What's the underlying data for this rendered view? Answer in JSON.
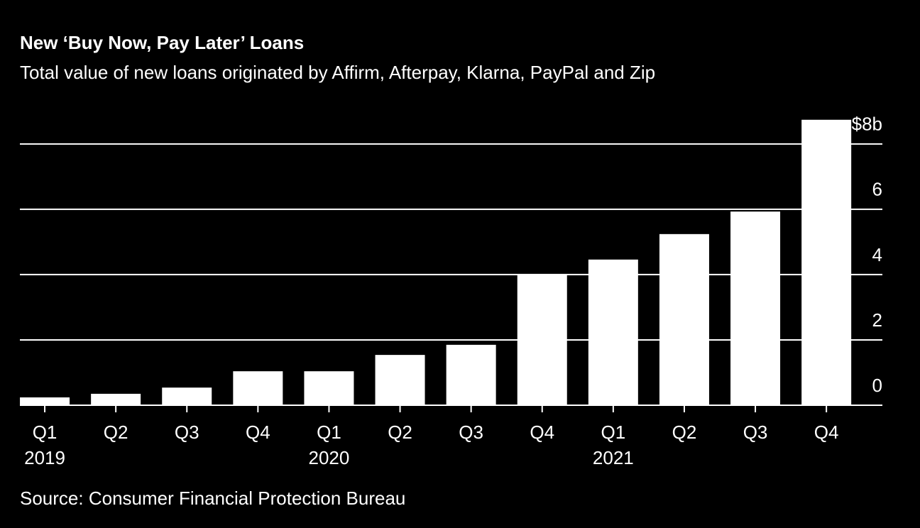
{
  "chart_data": {
    "type": "bar",
    "title": "New ‘Buy Now, Pay Later’ Loans",
    "subtitle": "Total value of new loans originated by Affirm, Afterpay, Klarna, PayPal and Zip",
    "source": "Source: Consumer Financial Protection Bureau",
    "categories": [
      "Q1",
      "Q2",
      "Q3",
      "Q4",
      "Q1",
      "Q2",
      "Q3",
      "Q4",
      "Q1",
      "Q2",
      "Q3",
      "Q4"
    ],
    "years": [
      "2019",
      null,
      null,
      null,
      "2020",
      null,
      null,
      null,
      "2021",
      null,
      null,
      null
    ],
    "values": [
      0.24,
      0.35,
      0.54,
      1.04,
      1.04,
      1.54,
      1.85,
      4.02,
      4.46,
      5.24,
      5.93,
      8.74
    ],
    "color": "#ffffff",
    "ylim": [
      0,
      8.8
    ],
    "yticks": [
      0,
      2,
      4,
      6,
      {
        "value": 8,
        "label": "$8b"
      }
    ],
    "grid": true
  }
}
